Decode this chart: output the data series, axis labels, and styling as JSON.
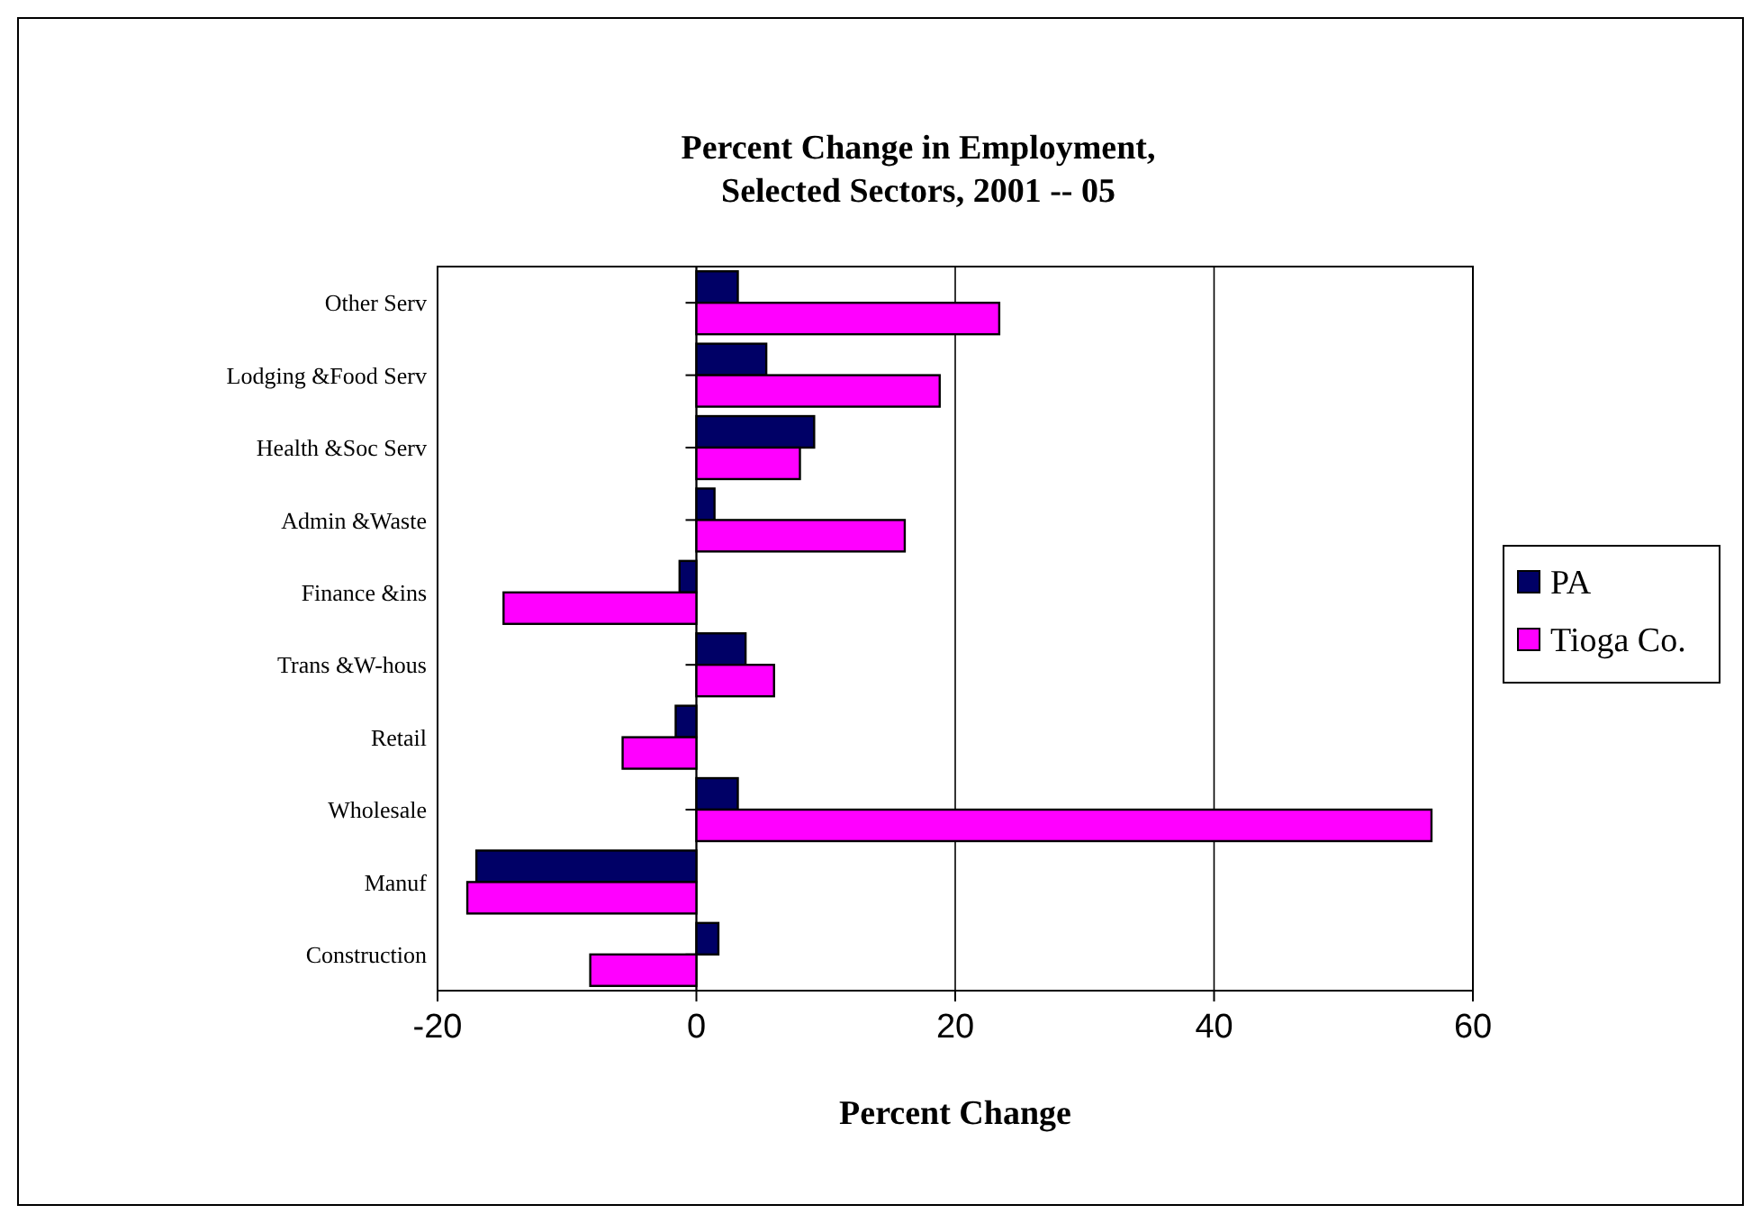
{
  "chart_data": {
    "type": "bar",
    "orientation": "horizontal",
    "title": "Percent Change in Employment,\nSelected Sectors, 2001 -- 05",
    "xlabel": "Percent Change",
    "categories": [
      "Other Serv",
      "Lodging &Food Serv",
      "Health &Soc Serv",
      "Admin &Waste",
      "Finance &ins",
      "Trans &W-hous",
      "Retail",
      "Wholesale",
      "Manuf",
      "Construction"
    ],
    "series": [
      {
        "name": "PA",
        "color": "#000066",
        "values": [
          3.2,
          5.4,
          9.1,
          1.4,
          -1.3,
          3.8,
          -1.6,
          3.2,
          -17.0,
          1.7
        ]
      },
      {
        "name": "Tioga Co.",
        "color": "#ff00ff",
        "values": [
          23.4,
          18.8,
          8.0,
          16.1,
          -14.9,
          6.0,
          -5.7,
          56.8,
          -17.7,
          -8.2
        ]
      }
    ],
    "xlim": [
      -20,
      60
    ],
    "xticks": [
      -20,
      0,
      20,
      40,
      60
    ],
    "grid": "x",
    "legend": "right"
  }
}
